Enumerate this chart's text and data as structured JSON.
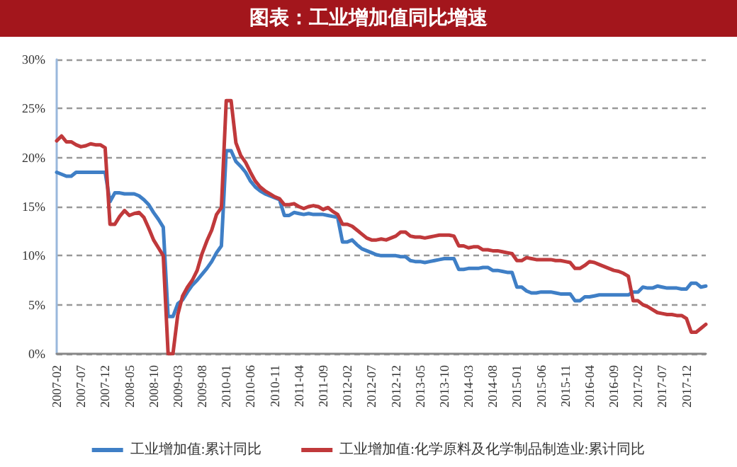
{
  "chart_data": {
    "type": "line",
    "title": "图表：工业增加值同比增速",
    "categories": [
      "2007-02",
      null,
      null,
      null,
      null,
      "2007-07",
      null,
      null,
      null,
      null,
      "2007-12",
      null,
      null,
      null,
      null,
      "2008-05",
      null,
      null,
      null,
      null,
      "2008-10",
      null,
      null,
      null,
      null,
      "2009-03",
      null,
      null,
      null,
      null,
      "2009-08",
      null,
      null,
      null,
      null,
      "2010-01",
      null,
      null,
      null,
      null,
      "2010-06",
      null,
      null,
      null,
      null,
      "2010-11",
      null,
      null,
      null,
      null,
      "2011-04",
      null,
      null,
      null,
      null,
      "2011-09",
      null,
      null,
      null,
      null,
      "2012-02",
      null,
      null,
      null,
      null,
      "2012-07",
      null,
      null,
      null,
      null,
      "2012-12",
      null,
      null,
      null,
      null,
      "2013-05",
      null,
      null,
      null,
      null,
      "2013-10",
      null,
      null,
      null,
      null,
      "2014-03",
      null,
      null,
      null,
      null,
      "2014-08",
      null,
      null,
      null,
      null,
      "2015-01",
      null,
      null,
      null,
      null,
      "2015-06",
      null,
      null,
      null,
      null,
      "2015-11",
      null,
      null,
      null,
      null,
      "2016-04",
      null,
      null,
      null,
      null,
      "2016-09",
      null,
      null,
      null,
      null,
      "2017-02",
      null,
      null,
      null,
      null,
      "2017-07",
      null,
      null,
      null,
      null,
      "2017-12",
      null,
      null,
      null,
      null
    ],
    "series": [
      {
        "name": "工业增加值:累计同比",
        "color": "#3f7fc6",
        "values": [
          18.5,
          18.3,
          18.1,
          18.1,
          18.5,
          18.5,
          18.5,
          18.5,
          18.5,
          18.5,
          18.5,
          15.5,
          16.4,
          16.4,
          16.3,
          16.3,
          16.3,
          16.1,
          15.7,
          15.2,
          14.4,
          13.7,
          12.9,
          3.8,
          3.8,
          5.1,
          5.5,
          6.3,
          7.0,
          7.5,
          8.1,
          8.7,
          9.4,
          10.3,
          11.0,
          20.7,
          20.7,
          19.6,
          19.1,
          18.5,
          17.6,
          17.0,
          16.6,
          16.3,
          16.1,
          15.9,
          15.7,
          14.1,
          14.1,
          14.4,
          14.3,
          14.2,
          14.3,
          14.2,
          14.2,
          14.2,
          14.1,
          14.0,
          13.9,
          11.4,
          11.4,
          11.6,
          11.1,
          10.7,
          10.5,
          10.3,
          10.1,
          10.0,
          10.0,
          10.0,
          10.0,
          9.9,
          9.9,
          9.5,
          9.4,
          9.4,
          9.3,
          9.4,
          9.5,
          9.6,
          9.7,
          9.7,
          9.7,
          8.6,
          8.6,
          8.7,
          8.7,
          8.7,
          8.8,
          8.8,
          8.5,
          8.5,
          8.4,
          8.3,
          8.3,
          6.8,
          6.8,
          6.4,
          6.2,
          6.2,
          6.3,
          6.3,
          6.3,
          6.2,
          6.1,
          6.1,
          6.1,
          5.4,
          5.4,
          5.8,
          5.8,
          5.9,
          6.0,
          6.0,
          6.0,
          6.0,
          6.0,
          6.0,
          6.0,
          6.3,
          6.3,
          6.8,
          6.7,
          6.7,
          6.9,
          6.8,
          6.7,
          6.7,
          6.7,
          6.6,
          6.6,
          7.2,
          7.2,
          6.8,
          6.9
        ]
      },
      {
        "name": "工业增加值:化学原料及化学制品制造业:累计同比",
        "color": "#c0393b",
        "values": [
          21.7,
          22.2,
          21.6,
          21.6,
          21.3,
          21.1,
          21.2,
          21.4,
          21.3,
          21.3,
          21.0,
          13.2,
          13.2,
          14.0,
          14.6,
          14.1,
          14.3,
          14.4,
          13.9,
          12.8,
          11.6,
          10.8,
          10.0,
          0.0,
          0.0,
          4.0,
          5.9,
          6.8,
          7.5,
          8.5,
          10.2,
          11.5,
          12.6,
          14.2,
          14.9,
          25.8,
          25.8,
          21.5,
          20.2,
          19.5,
          18.5,
          17.6,
          17.0,
          16.6,
          16.3,
          16.0,
          15.8,
          15.2,
          15.2,
          15.3,
          15.0,
          14.8,
          15.0,
          15.1,
          15.0,
          14.7,
          14.9,
          14.5,
          14.2,
          13.2,
          13.2,
          13.0,
          12.6,
          12.2,
          11.8,
          11.6,
          11.6,
          11.7,
          11.6,
          11.8,
          12.0,
          12.4,
          12.4,
          12.0,
          11.9,
          11.9,
          11.8,
          11.9,
          12.0,
          12.1,
          12.1,
          12.1,
          12.0,
          11.0,
          11.0,
          10.8,
          10.9,
          10.9,
          10.6,
          10.6,
          10.5,
          10.5,
          10.4,
          10.3,
          10.2,
          9.5,
          9.5,
          9.8,
          9.7,
          9.6,
          9.6,
          9.6,
          9.6,
          9.5,
          9.5,
          9.4,
          9.3,
          8.7,
          8.7,
          9.0,
          9.4,
          9.3,
          9.1,
          8.9,
          8.7,
          8.5,
          8.4,
          8.2,
          7.9,
          5.4,
          5.4,
          5.0,
          4.8,
          4.5,
          4.2,
          4.1,
          4.0,
          4.0,
          3.9,
          3.9,
          3.6,
          2.2,
          2.2,
          2.6,
          3.0
        ]
      }
    ],
    "ylim": [
      0,
      30
    ],
    "yticks": [
      {
        "value": 0,
        "label": "0%"
      },
      {
        "value": 5,
        "label": "5%"
      },
      {
        "value": 10,
        "label": "10%"
      },
      {
        "value": 15,
        "label": "15%"
      },
      {
        "value": 20,
        "label": "20%"
      },
      {
        "value": 25,
        "label": "25%"
      },
      {
        "value": 30,
        "label": "30%"
      }
    ],
    "grid": "y",
    "legend": "bottom",
    "marker": "none"
  }
}
